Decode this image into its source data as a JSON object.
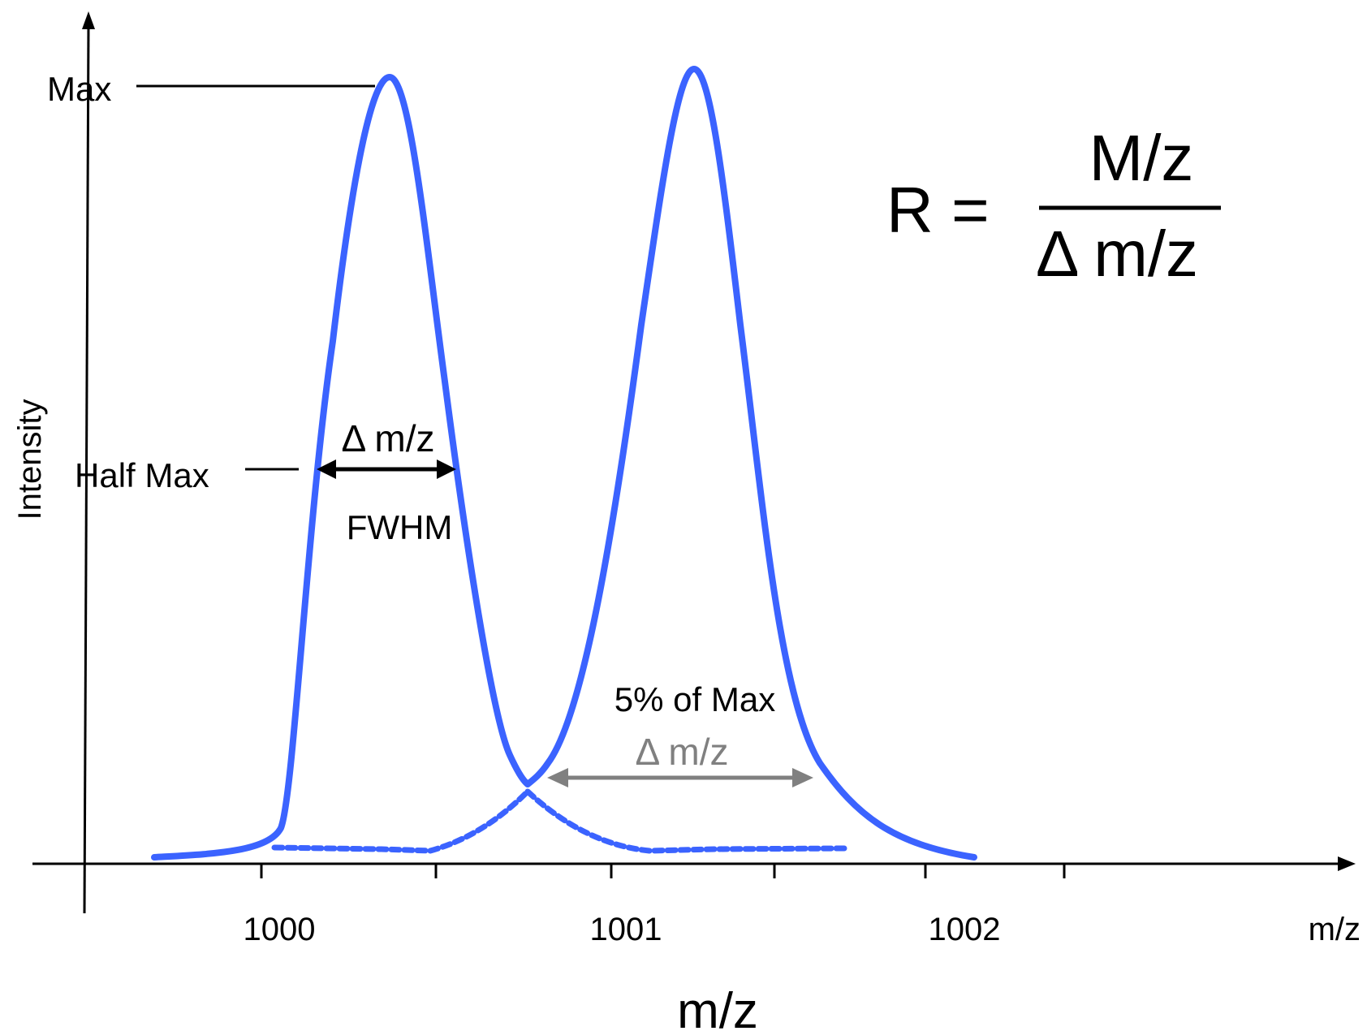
{
  "colors": {
    "peak": "#3b63ff",
    "axis": "#000000",
    "fwhm_arrow": "#000000",
    "base_arrow": "#808080",
    "text": "#000000",
    "gray_text": "#808080"
  },
  "axes": {
    "x_label_small": "m/z",
    "x_label_large": "m/z",
    "y_label": "Intensity",
    "x_ticks": [
      "1000",
      "1001",
      "1002"
    ]
  },
  "levels": {
    "max_label": "Max",
    "half_max_label": "Half Max"
  },
  "fwhm": {
    "delta_label": "Δ m/z",
    "label": "FWHM"
  },
  "five_percent": {
    "label": "5% of Max",
    "delta_label": "Δ m/z"
  },
  "formula": {
    "lhs": "R =",
    "numerator": "M/z",
    "denominator": "Δ m/z"
  },
  "icons": {
    "y_axis_arrow": "arrow-up-icon",
    "x_axis_arrow": "arrow-right-icon",
    "fwhm_arrow": "double-arrow-icon",
    "base_arrow": "double-arrow-icon"
  }
}
